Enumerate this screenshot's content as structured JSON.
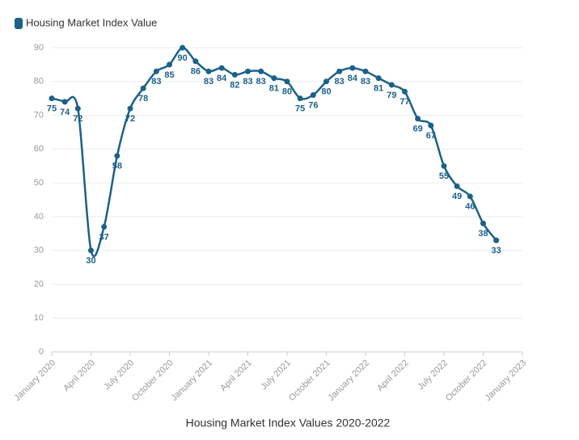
{
  "chart_data": {
    "type": "line",
    "title": "Housing Market Index Values 2020-2022",
    "x": [
      "2020-01",
      "2020-02",
      "2020-03",
      "2020-04",
      "2020-05",
      "2020-06",
      "2020-07",
      "2020-08",
      "2020-09",
      "2020-10",
      "2020-11",
      "2020-12",
      "2021-01",
      "2021-02",
      "2021-03",
      "2021-04",
      "2021-05",
      "2021-06",
      "2021-07",
      "2021-08",
      "2021-09",
      "2021-10",
      "2021-11",
      "2021-12",
      "2022-01",
      "2022-02",
      "2022-03",
      "2022-04",
      "2022-05",
      "2022-06",
      "2022-07",
      "2022-08",
      "2022-09",
      "2022-10",
      "2022-11"
    ],
    "series": [
      {
        "name": "Housing Market Index Value",
        "color": "#1b6189",
        "values": [
          75,
          74,
          72,
          30,
          37,
          58,
          72,
          78,
          83,
          85,
          90,
          86,
          83,
          84,
          82,
          83,
          83,
          81,
          80,
          75,
          76,
          80,
          83,
          84,
          83,
          81,
          79,
          77,
          69,
          67,
          55,
          49,
          46,
          38,
          33
        ]
      }
    ],
    "xlim": [
      "2020-01",
      "2023-01"
    ],
    "xticks": [
      {
        "value": "2020-01",
        "label": "January 2020"
      },
      {
        "value": "2020-04",
        "label": "April 2020"
      },
      {
        "value": "2020-07",
        "label": "July 2020"
      },
      {
        "value": "2020-10",
        "label": "October 2020"
      },
      {
        "value": "2021-01",
        "label": "January 2021"
      },
      {
        "value": "2021-04",
        "label": "April 2021"
      },
      {
        "value": "2021-07",
        "label": "July 2021"
      },
      {
        "value": "2021-10",
        "label": "October 2021"
      },
      {
        "value": "2022-01",
        "label": "January 2022"
      },
      {
        "value": "2022-04",
        "label": "April 2022"
      },
      {
        "value": "2022-07",
        "label": "July 2022"
      },
      {
        "value": "2022-10",
        "label": "October 2022"
      },
      {
        "value": "2023-01",
        "label": "January 2023"
      }
    ],
    "ylim": [
      0,
      90
    ],
    "yticks": [
      0,
      10,
      20,
      30,
      40,
      50,
      60,
      70,
      80,
      90
    ],
    "grid": true
  }
}
